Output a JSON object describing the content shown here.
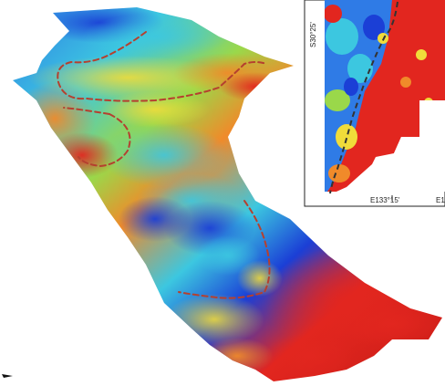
{
  "figure": {
    "colors": {
      "deep_blue": "#1b3fd6",
      "blue": "#2f7be6",
      "cyan": "#3cc7e0",
      "green": "#9ad84a",
      "yellow": "#f0dc3a",
      "orange": "#f08a2a",
      "red": "#e2261f",
      "dark_red": "#c81c16",
      "boundary": "#b5402f"
    }
  },
  "inset": {
    "lat_label": "S30°25'",
    "lon_label_1": "E133°15'",
    "lon_label_2": "E1"
  }
}
